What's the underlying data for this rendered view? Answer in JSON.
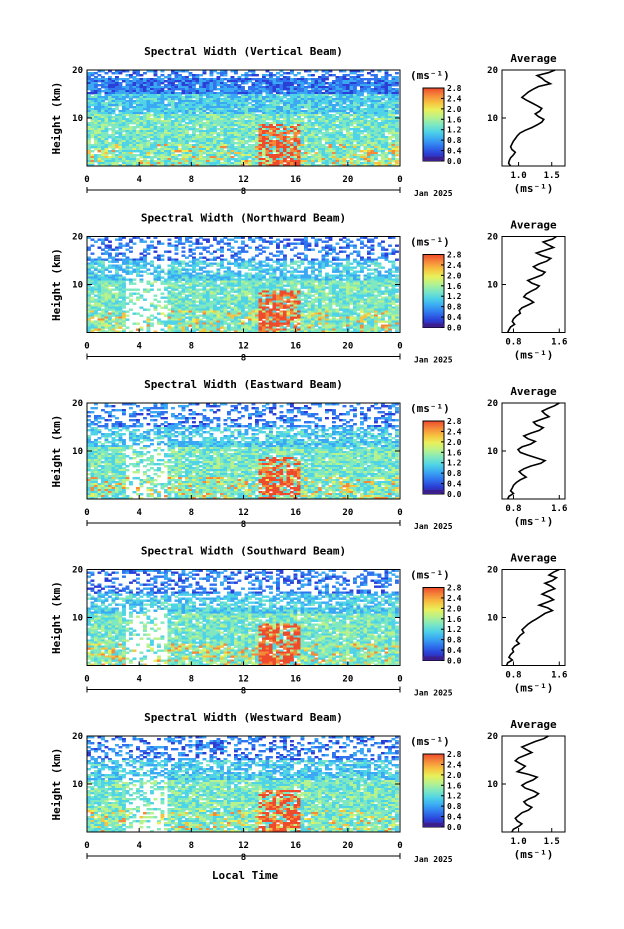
{
  "chart_data": {
    "type": "heatmap",
    "figure_xlabel": "Local Time",
    "colormap": [
      "#3b1f8f",
      "#2b3fd6",
      "#2f74ee",
      "#3aa8f3",
      "#4fd3e6",
      "#7fe8c1",
      "#b7f28c",
      "#e9f05a",
      "#f7c23f",
      "#f5893a",
      "#ee4a2c"
    ],
    "panels": [
      {
        "title": "Spectral Width (Vertical Beam)",
        "ylabel": "Height (km)",
        "y_ticks": [
          "20",
          "10"
        ],
        "x_ticks": [
          "0",
          "4",
          "8",
          "12",
          "16",
          "20",
          "0"
        ],
        "date_tick": "8",
        "date_label": "Jan 2025",
        "colorbar_unit": "(ms⁻¹)",
        "colorbar_ticks": [
          "2.8",
          "2.4",
          "2.0",
          "1.6",
          "1.2",
          "0.8",
          "0.4",
          "0.0"
        ],
        "avg_title": "Average",
        "avg_xticks": [
          "1.0",
          "1.5"
        ],
        "avg_xlim": [
          0.75,
          1.7
        ],
        "avg_unit": "(ms⁻¹)",
        "avg_profile": [
          1.55,
          1.45,
          1.28,
          1.35,
          1.4,
          1.48,
          1.3,
          1.22,
          1.15,
          1.1,
          1.05,
          1.12,
          1.2,
          1.28,
          1.35,
          1.32,
          1.25,
          1.3,
          1.38,
          1.35,
          1.28,
          1.2,
          1.1,
          1.02,
          0.98,
          0.95,
          0.92,
          0.9,
          0.88,
          0.9,
          0.95,
          0.92,
          0.88,
          0.86,
          0.85,
          0.88
        ]
      },
      {
        "title": "Spectral Width (Northward Beam)",
        "ylabel": "Height (km)",
        "y_ticks": [
          "20",
          "10"
        ],
        "x_ticks": [
          "0",
          "4",
          "8",
          "12",
          "16",
          "20",
          "0"
        ],
        "date_tick": "8",
        "date_label": "Jan 2025",
        "colorbar_unit": "(ms⁻¹)",
        "colorbar_ticks": [
          "2.8",
          "2.4",
          "2.0",
          "1.6",
          "1.2",
          "0.8",
          "0.4",
          "0.0"
        ],
        "avg_title": "Average",
        "avg_xticks": [
          "0.8",
          "1.6"
        ],
        "avg_xlim": [
          0.6,
          1.7
        ],
        "avg_unit": "(ms⁻¹)",
        "avg_profile": [
          1.55,
          1.48,
          1.32,
          1.4,
          1.5,
          1.35,
          1.2,
          1.3,
          1.45,
          1.38,
          1.25,
          1.15,
          1.22,
          1.35,
          1.3,
          1.18,
          1.05,
          1.12,
          1.25,
          1.2,
          1.1,
          1.02,
          0.98,
          1.08,
          1.15,
          1.05,
          0.95,
          0.9,
          0.92,
          0.85,
          0.8,
          0.78,
          0.82,
          0.75,
          0.72,
          0.7
        ]
      },
      {
        "title": "Spectral Width (Eastward Beam)",
        "ylabel": "Height (km)",
        "y_ticks": [
          "20",
          "10"
        ],
        "x_ticks": [
          "0",
          "4",
          "8",
          "12",
          "16",
          "20",
          "0"
        ],
        "date_tick": "8",
        "date_label": "Jan 2025",
        "colorbar_unit": "(ms⁻¹)",
        "colorbar_ticks": [
          "2.8",
          "2.4",
          "2.0",
          "1.6",
          "1.2",
          "0.8",
          "0.4",
          "0.0"
        ],
        "avg_title": "Average",
        "avg_xticks": [
          "0.8",
          "1.6"
        ],
        "avg_xlim": [
          0.6,
          1.7
        ],
        "avg_unit": "(ms⁻¹)",
        "avg_profile": [
          1.6,
          1.52,
          1.4,
          1.3,
          1.35,
          1.42,
          1.28,
          1.15,
          1.2,
          1.32,
          1.25,
          1.1,
          0.98,
          1.05,
          1.18,
          1.1,
          0.95,
          0.88,
          0.92,
          1.05,
          1.2,
          1.35,
          1.28,
          1.1,
          0.98,
          0.9,
          0.95,
          1.02,
          0.92,
          0.85,
          0.8,
          0.78,
          0.75,
          0.8,
          0.72,
          0.7
        ]
      },
      {
        "title": "Spectral Width (Southward Beam)",
        "ylabel": "Height (km)",
        "y_ticks": [
          "20",
          "10"
        ],
        "x_ticks": [
          "0",
          "4",
          "8",
          "12",
          "16",
          "20",
          "0"
        ],
        "date_tick": "8",
        "date_label": "Jan 2025",
        "colorbar_unit": "(ms⁻¹)",
        "colorbar_ticks": [
          "2.8",
          "2.4",
          "2.0",
          "1.6",
          "1.2",
          "0.8",
          "0.4",
          "0.0"
        ],
        "avg_title": "Average",
        "avg_xticks": [
          "0.8",
          "1.6"
        ],
        "avg_xlim": [
          0.6,
          1.7
        ],
        "avg_unit": "(ms⁻¹)",
        "avg_profile": [
          1.6,
          1.5,
          1.42,
          1.55,
          1.48,
          1.35,
          1.45,
          1.52,
          1.4,
          1.3,
          1.42,
          1.5,
          1.38,
          1.25,
          1.4,
          1.48,
          1.35,
          1.28,
          1.2,
          1.12,
          1.05,
          1.0,
          0.95,
          0.98,
          0.92,
          0.88,
          0.85,
          0.9,
          0.82,
          0.78,
          0.8,
          0.75,
          0.72,
          0.78,
          0.7,
          0.68
        ]
      },
      {
        "title": "Spectral Width (Westward Beam)",
        "ylabel": "Height (km)",
        "y_ticks": [
          "20",
          "10"
        ],
        "x_ticks": [
          "0",
          "4",
          "8",
          "12",
          "16",
          "20",
          "0"
        ],
        "date_tick": "8",
        "date_label": "Jan 2025",
        "colorbar_unit": "(ms⁻¹)",
        "colorbar_ticks": [
          "2.8",
          "2.4",
          "2.0",
          "1.6",
          "1.2",
          "0.8",
          "0.4",
          "0.0"
        ],
        "avg_title": "Average",
        "avg_xticks": [
          "1.0",
          "1.5"
        ],
        "avg_xlim": [
          0.75,
          1.7
        ],
        "avg_unit": "(ms⁻¹)",
        "avg_profile": [
          1.45,
          1.38,
          1.25,
          1.15,
          1.05,
          1.12,
          1.2,
          1.1,
          1.0,
          0.95,
          1.02,
          1.1,
          1.05,
          0.98,
          1.15,
          1.28,
          1.22,
          1.12,
          1.05,
          1.1,
          1.22,
          1.3,
          1.25,
          1.15,
          1.08,
          1.12,
          1.2,
          1.15,
          1.05,
          1.0,
          0.95,
          0.98,
          1.05,
          1.0,
          0.92,
          0.9
        ]
      }
    ]
  }
}
